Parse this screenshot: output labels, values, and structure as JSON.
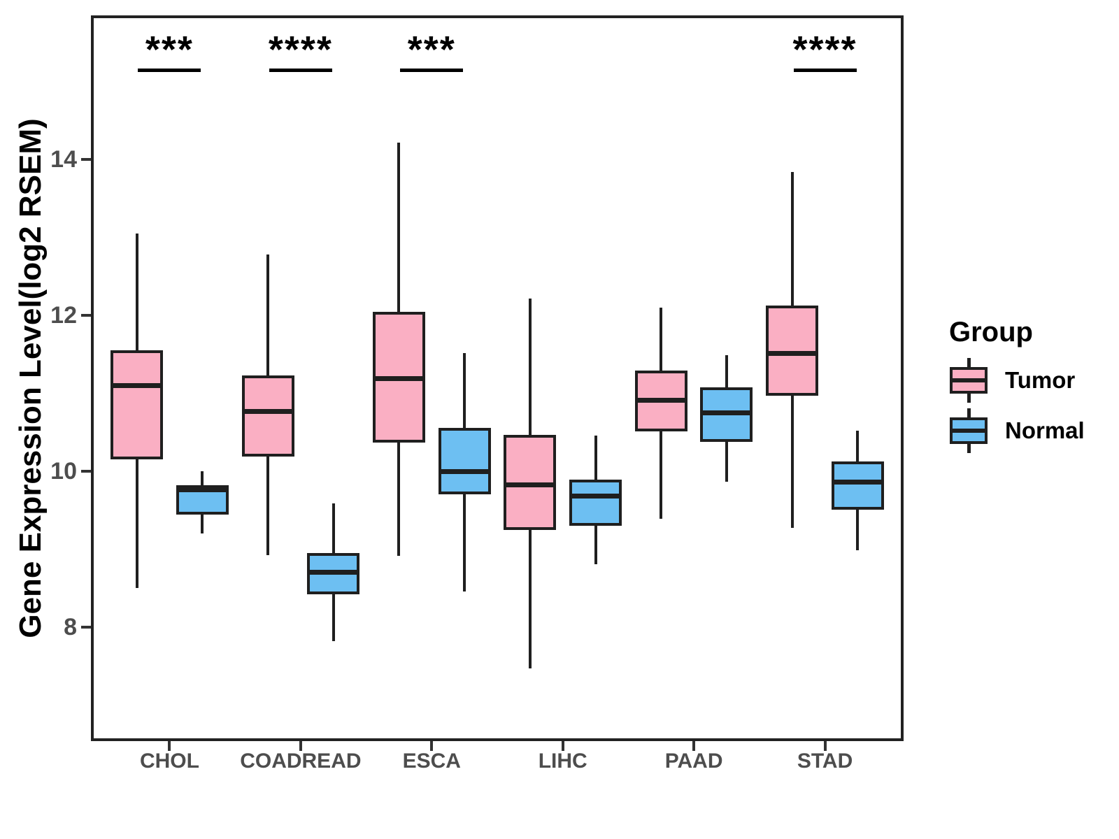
{
  "chart_data": {
    "type": "boxplot",
    "title": "",
    "xlabel": "",
    "ylabel": "Gene Expression Level(log2 RSEM)",
    "categories": [
      "CHOL",
      "COADREAD",
      "ESCA",
      "LIHC",
      "PAAD",
      "STAD"
    ],
    "groups": [
      {
        "name": "Tumor",
        "color": "#FAAFC3"
      },
      {
        "name": "Normal",
        "color": "#6DBFF2"
      }
    ],
    "y_ticks": [
      8,
      10,
      12,
      14
    ],
    "y_range": [
      6.54,
      15.85
    ],
    "grid": "off",
    "series": [
      {
        "category": "CHOL",
        "group": "Tumor",
        "whisker_low": 8.5,
        "q1": 10.15,
        "median": 11.1,
        "q3": 11.55,
        "whisker_high": 13.05
      },
      {
        "category": "CHOL",
        "group": "Normal",
        "whisker_low": 9.2,
        "q1": 9.45,
        "median": 9.76,
        "q3": 9.82,
        "whisker_high": 10.0
      },
      {
        "category": "COADREAD",
        "group": "Tumor",
        "whisker_low": 8.93,
        "q1": 10.19,
        "median": 10.77,
        "q3": 11.23,
        "whisker_high": 12.78
      },
      {
        "category": "COADREAD",
        "group": "Normal",
        "whisker_low": 7.82,
        "q1": 8.42,
        "median": 8.71,
        "q3": 8.95,
        "whisker_high": 9.59
      },
      {
        "category": "ESCA",
        "group": "Tumor",
        "whisker_low": 8.92,
        "q1": 10.37,
        "median": 11.19,
        "q3": 12.05,
        "whisker_high": 14.22
      },
      {
        "category": "ESCA",
        "group": "Normal",
        "whisker_low": 8.46,
        "q1": 9.71,
        "median": 10.0,
        "q3": 10.56,
        "whisker_high": 11.52
      },
      {
        "category": "LIHC",
        "group": "Tumor",
        "whisker_low": 7.47,
        "q1": 9.25,
        "median": 9.83,
        "q3": 10.47,
        "whisker_high": 12.22
      },
      {
        "category": "LIHC",
        "group": "Normal",
        "whisker_low": 8.81,
        "q1": 9.3,
        "median": 9.68,
        "q3": 9.89,
        "whisker_high": 10.46
      },
      {
        "category": "PAAD",
        "group": "Tumor",
        "whisker_low": 9.39,
        "q1": 10.51,
        "median": 10.91,
        "q3": 11.29,
        "whisker_high": 12.1
      },
      {
        "category": "PAAD",
        "group": "Normal",
        "whisker_low": 9.87,
        "q1": 10.38,
        "median": 10.75,
        "q3": 11.08,
        "whisker_high": 11.49
      },
      {
        "category": "STAD",
        "group": "Tumor",
        "whisker_low": 9.28,
        "q1": 10.97,
        "median": 11.51,
        "q3": 12.13,
        "whisker_high": 13.84
      },
      {
        "category": "STAD",
        "group": "Normal",
        "whisker_low": 8.99,
        "q1": 9.51,
        "median": 9.86,
        "q3": 10.13,
        "whisker_high": 10.52
      }
    ],
    "significance": [
      {
        "category": "CHOL",
        "label": "***"
      },
      {
        "category": "COADREAD",
        "label": "****"
      },
      {
        "category": "ESCA",
        "label": "***"
      },
      {
        "category": "STAD",
        "label": "****"
      }
    ],
    "legend": {
      "title": "Group",
      "position": "right",
      "entries": [
        "Tumor",
        "Normal"
      ]
    },
    "colors": {
      "box_border": "#1F1F1F",
      "axis_text": "#4D4D4D",
      "axis_line": "#222222",
      "annotation": "#000000"
    }
  }
}
